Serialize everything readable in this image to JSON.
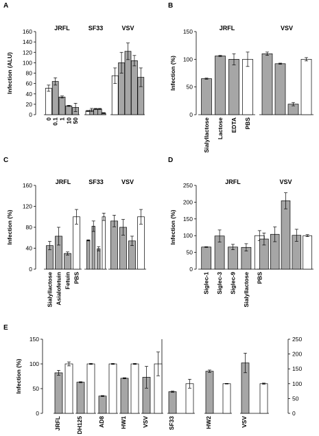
{
  "chart_data": [
    {
      "panel": "A",
      "type": "bar",
      "ylabel": "Infection (ALU)",
      "ylim": [
        0,
        160
      ],
      "yticks": [
        0,
        20,
        40,
        60,
        80,
        100,
        120,
        140,
        160
      ],
      "groups": [
        {
          "label": "JRFL",
          "bars": [
            {
              "value": 51,
              "err": 6,
              "fill": "white"
            },
            {
              "value": 64,
              "err": 7,
              "fill": "gray"
            },
            {
              "value": 34,
              "err": 2,
              "fill": "gray"
            },
            {
              "value": 17,
              "err": 1,
              "fill": "gray"
            },
            {
              "value": 14,
              "err": 8,
              "fill": "gray"
            }
          ]
        },
        {
          "label": "SF33",
          "bars": [
            {
              "value": 7,
              "err": 1,
              "fill": "white"
            },
            {
              "value": 9,
              "err": 3,
              "fill": "gray"
            },
            {
              "value": 11,
              "err": 1,
              "fill": "gray"
            },
            {
              "value": 11,
              "err": 1,
              "fill": "gray"
            },
            {
              "value": 3,
              "err": 1,
              "fill": "gray"
            }
          ]
        },
        {
          "label": "VSV",
          "bars": [
            {
              "value": 75,
              "err": 15,
              "fill": "white"
            },
            {
              "value": 100,
              "err": 20,
              "fill": "gray"
            },
            {
              "value": 122,
              "err": 16,
              "fill": "gray"
            },
            {
              "value": 104,
              "err": 10,
              "fill": "gray"
            },
            {
              "value": 72,
              "err": 18,
              "fill": "gray"
            }
          ]
        }
      ],
      "xticklabels": [
        "0",
        "0.1",
        "1",
        "10",
        "50"
      ]
    },
    {
      "panel": "B",
      "type": "bar",
      "ylabel": "Infection (%)",
      "ylim": [
        0,
        150
      ],
      "yticks": [
        0,
        50,
        100,
        150
      ],
      "groups": [
        {
          "label": "JRFL",
          "bars": [
            {
              "value": 65,
              "err": 1,
              "fill": "gray"
            },
            {
              "value": 106,
              "err": 1,
              "fill": "gray"
            },
            {
              "value": 100,
              "err": 10,
              "fill": "gray"
            },
            {
              "value": 100,
              "err": 13,
              "fill": "white"
            }
          ]
        },
        {
          "label": "VSV",
          "bars": [
            {
              "value": 110,
              "err": 3,
              "fill": "gray"
            },
            {
              "value": 92,
              "err": 1,
              "fill": "gray"
            },
            {
              "value": 19,
              "err": 3,
              "fill": "gray"
            },
            {
              "value": 100,
              "err": 3,
              "fill": "white"
            }
          ]
        }
      ],
      "xticklabels": [
        "Sialyllactose",
        "Lactose",
        "EDTA",
        "PBS"
      ]
    },
    {
      "panel": "C",
      "type": "bar",
      "ylabel": "Infection (%)",
      "ylim": [
        0,
        160
      ],
      "yticks": [
        0,
        40,
        80,
        120,
        160
      ],
      "groups": [
        {
          "label": "JRFL",
          "bars": [
            {
              "value": 45,
              "err": 8,
              "fill": "gray"
            },
            {
              "value": 63,
              "err": 17,
              "fill": "gray"
            },
            {
              "value": 30,
              "err": 3,
              "fill": "gray"
            },
            {
              "value": 100,
              "err": 14,
              "fill": "white"
            }
          ]
        },
        {
          "label": "SF33",
          "bars": [
            {
              "value": 55,
              "err": 1,
              "fill": "gray"
            },
            {
              "value": 82,
              "err": 10,
              "fill": "gray"
            },
            {
              "value": 39,
              "err": 4,
              "fill": "gray"
            },
            {
              "value": 100,
              "err": 7,
              "fill": "white"
            }
          ]
        },
        {
          "label": "VSV",
          "bars": [
            {
              "value": 92,
              "err": 11,
              "fill": "gray"
            },
            {
              "value": 80,
              "err": 15,
              "fill": "gray"
            },
            {
              "value": 54,
              "err": 9,
              "fill": "gray"
            },
            {
              "value": 100,
              "err": 14,
              "fill": "white"
            }
          ]
        }
      ],
      "xticklabels": [
        "Sialyllactose",
        "Asialofetuin",
        "Fetuin",
        "PBS"
      ]
    },
    {
      "panel": "D",
      "type": "bar",
      "ylabel": "Infection (%)",
      "ylim": [
        0,
        250
      ],
      "yticks": [
        0,
        50,
        100,
        150,
        200,
        250
      ],
      "groups": [
        {
          "label": "JRFL",
          "bars": [
            {
              "value": 66,
              "err": 1,
              "fill": "gray"
            },
            {
              "value": 99,
              "err": 18,
              "fill": "gray"
            },
            {
              "value": 66,
              "err": 8,
              "fill": "gray"
            },
            {
              "value": 65,
              "err": 11,
              "fill": "gray"
            },
            {
              "value": 100,
              "err": 15,
              "fill": "white"
            }
          ]
        },
        {
          "label": "VSV",
          "bars": [
            {
              "value": 90,
              "err": 18,
              "fill": "gray"
            },
            {
              "value": 104,
              "err": 22,
              "fill": "gray"
            },
            {
              "value": 204,
              "err": 24,
              "fill": "gray"
            },
            {
              "value": 101,
              "err": 18,
              "fill": "gray"
            },
            {
              "value": 100,
              "err": 3,
              "fill": "white"
            }
          ]
        }
      ],
      "xticklabels": [
        "Siglec-1",
        "Siglec-3",
        "Siglec-9",
        "Sialyllactose",
        "PBS"
      ]
    },
    {
      "panel": "E",
      "type": "bar",
      "ylabel": "Infection (%)",
      "ylim_left": [
        0,
        150
      ],
      "yticks_left": [
        0,
        50,
        100,
        150
      ],
      "ylim_right": [
        0,
        250
      ],
      "yticks_right": [
        0,
        50,
        100,
        150,
        200,
        250
      ],
      "groups": [
        {
          "label": "JRFL",
          "axis": "left",
          "bars": [
            {
              "value": 82,
              "err": 5,
              "fill": "gray"
            },
            {
              "value": 100,
              "err": 4,
              "fill": "white"
            }
          ]
        },
        {
          "label": "DH125",
          "axis": "left",
          "bars": [
            {
              "value": 63,
              "err": 1,
              "fill": "gray"
            },
            {
              "value": 100,
              "err": 1,
              "fill": "white"
            }
          ]
        },
        {
          "label": "AD8",
          "axis": "left",
          "bars": [
            {
              "value": 35,
              "err": 1,
              "fill": "gray"
            },
            {
              "value": 100,
              "err": 1,
              "fill": "white"
            }
          ]
        },
        {
          "label": "HW1",
          "axis": "left",
          "bars": [
            {
              "value": 71,
              "err": 1,
              "fill": "gray"
            },
            {
              "value": 100,
              "err": 1,
              "fill": "white"
            }
          ]
        },
        {
          "label": "VSV",
          "axis": "left",
          "bars": [
            {
              "value": 73,
              "err": 22,
              "fill": "gray"
            },
            {
              "value": 100,
              "err": 24,
              "fill": "white"
            }
          ]
        },
        {
          "label": "SF33",
          "axis": "right",
          "bars": [
            {
              "value": 73,
              "err": 2,
              "fill": "gray"
            },
            {
              "value": 100,
              "err": 15,
              "fill": "white"
            }
          ]
        },
        {
          "label": "HW2",
          "axis": "right",
          "bars": [
            {
              "value": 142,
              "err": 4,
              "fill": "gray"
            },
            {
              "value": 100,
              "err": 1,
              "fill": "white"
            }
          ]
        },
        {
          "label": "VSV",
          "axis": "right",
          "bars": [
            {
              "value": 170,
              "err": 33,
              "fill": "gray"
            },
            {
              "value": 100,
              "err": 2,
              "fill": "white"
            }
          ]
        }
      ]
    }
  ]
}
